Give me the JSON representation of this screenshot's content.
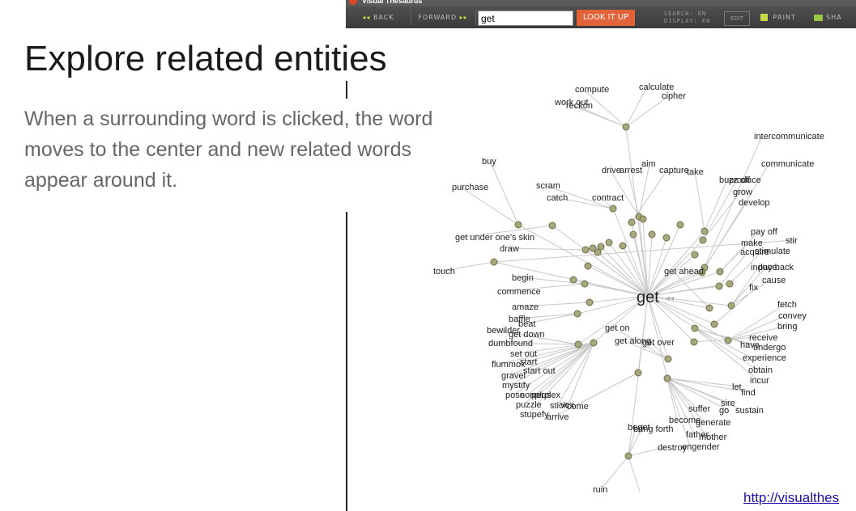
{
  "slide": {
    "title": "Explore related entities",
    "body": "When a surrounding word is clicked, the word moves to the center and new related words appear around it.",
    "link": "http://visualthes"
  },
  "app": {
    "title": "Visual Thesaurus",
    "toolbar": {
      "back": "BACK",
      "forward": "FORWARD",
      "search_value": "get",
      "look_it_up": "LOOK IT UP",
      "search_lang": "SEARCH: EN",
      "display_lang": "DISPLAY: EN",
      "edit": "EDIT",
      "print": "PRINT",
      "share": "SHA"
    },
    "center_word": "get",
    "words": [
      "compute",
      "calculate",
      "cipher",
      "work out",
      "reckon",
      "buy",
      "purchase",
      "drive",
      "arrest",
      "aim",
      "capture",
      "take",
      "buzz off",
      "scram",
      "catch",
      "contract",
      "produce",
      "grow",
      "develop",
      "intercommunicate",
      "communicate",
      "stir",
      "touch",
      "get under one's skin",
      "draw",
      "pay off",
      "make",
      "stimulate",
      "acquire",
      "induce",
      "pay back",
      "cause",
      "get ahead",
      "fix",
      "begin",
      "commence",
      "fetch",
      "convey",
      "bring",
      "amaze",
      "baffle",
      "beat",
      "bewilder",
      "get down",
      "dumbfound",
      "flummox",
      "set out",
      "start",
      "gravel",
      "start out",
      "mystify",
      "nonplus",
      "pose",
      "perplex",
      "puzzle",
      "stick",
      "vex",
      "stupefy",
      "arrive",
      "come",
      "get on",
      "get along",
      "get over",
      "receive",
      "have",
      "undergo",
      "experience",
      "obtain",
      "incur",
      "let",
      "find",
      "sire",
      "go",
      "sustain",
      "suffer",
      "generate",
      "become",
      "beget",
      "bring forth",
      "mother",
      "father",
      "engender",
      "destroy",
      "ruin"
    ]
  }
}
